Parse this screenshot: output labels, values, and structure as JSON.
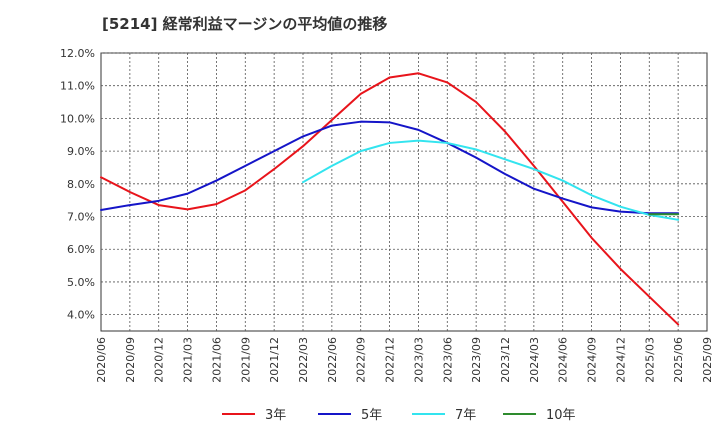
{
  "chart_data": {
    "type": "line",
    "title": "[5214]  経常利益マージンの平均値の推移",
    "xlabel": "",
    "ylabel": "",
    "x": [
      "2020/06",
      "2020/09",
      "2020/12",
      "2021/03",
      "2021/06",
      "2021/09",
      "2021/12",
      "2022/03",
      "2022/06",
      "2022/09",
      "2022/12",
      "2023/03",
      "2023/06",
      "2023/09",
      "2023/12",
      "2024/03",
      "2024/06",
      "2024/09",
      "2024/12",
      "2025/03",
      "2025/06",
      "2025/09"
    ],
    "y_ticks": [
      "12.0%",
      "11.0%",
      "10.0%",
      "9.0%",
      "8.0%",
      "7.0%",
      "6.0%",
      "5.0%",
      "4.0%"
    ],
    "ylim": [
      3.5,
      12.0
    ],
    "grid": true,
    "legend_position": "bottom",
    "series": [
      {
        "name": "3年",
        "color": "#e8141b",
        "values": [
          8.2,
          7.75,
          7.35,
          7.22,
          7.38,
          7.8,
          8.45,
          9.15,
          9.95,
          10.75,
          11.25,
          11.38,
          11.1,
          10.5,
          9.6,
          8.55,
          7.45,
          6.35,
          5.4,
          4.55,
          3.7,
          null
        ]
      },
      {
        "name": "5年",
        "color": "#1515c8",
        "values": [
          7.2,
          7.35,
          7.48,
          7.7,
          8.1,
          8.55,
          9.0,
          9.45,
          9.78,
          9.9,
          9.88,
          9.65,
          9.25,
          8.8,
          8.3,
          7.85,
          7.55,
          7.28,
          7.15,
          7.1,
          7.1,
          null
        ]
      },
      {
        "name": "7年",
        "color": "#33e4ef",
        "values": [
          null,
          null,
          null,
          null,
          null,
          null,
          null,
          8.05,
          8.55,
          9.0,
          9.25,
          9.32,
          9.25,
          9.05,
          8.75,
          8.45,
          8.1,
          7.65,
          7.3,
          7.05,
          6.9,
          null
        ]
      },
      {
        "name": "10年",
        "color": "#2e8b2e",
        "values": [
          null,
          null,
          null,
          null,
          null,
          null,
          null,
          null,
          null,
          null,
          null,
          null,
          null,
          null,
          null,
          null,
          null,
          null,
          null,
          7.07,
          7.07,
          null
        ]
      }
    ]
  }
}
